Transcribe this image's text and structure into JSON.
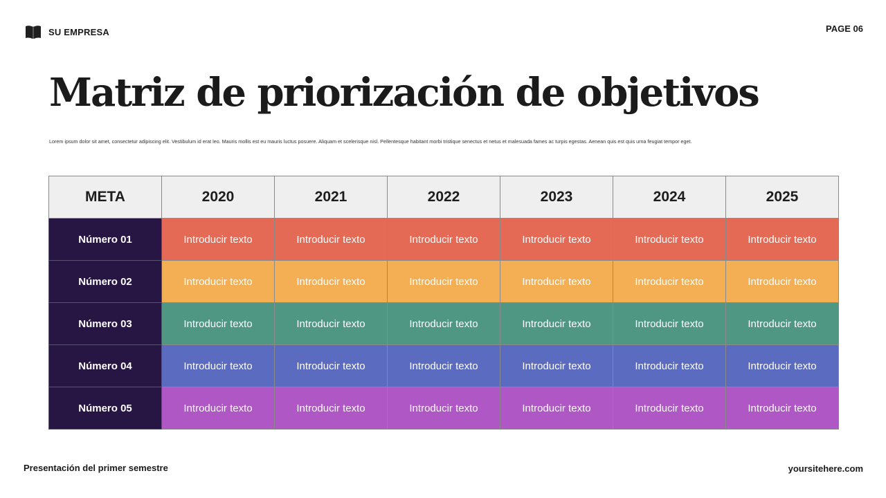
{
  "header": {
    "brand_icon": "open-book-icon",
    "brand": "SU EMPRESA",
    "page": "PAGE 06"
  },
  "title": "Matriz de priorización de objetivos",
  "description": "Lorem ipsum dolor sit amet, consectetur adipiscing elit. Vestibulum id erat leo. Mauris mollis est eu mauris luctus posuere. Aliquam et scelerisque nisl. Pellentesque habitant morbi tristique senectus et netus et malesuada fames ac turpis egestas. Aenean quis est quis urna feugiat tempor eget.",
  "table": {
    "headers": [
      "META",
      "2020",
      "2021",
      "2022",
      "2023",
      "2024",
      "2025"
    ],
    "rows": [
      {
        "label": "Número 01",
        "color": "#e46a55",
        "cells": [
          "Introducir texto",
          "Introducir texto",
          "Introducir texto",
          "Introducir texto",
          "Introducir texto",
          "Introducir texto"
        ]
      },
      {
        "label": "Número 02",
        "color": "#f4ae54",
        "cells": [
          "Introducir texto",
          "Introducir texto",
          "Introducir texto",
          "Introducir texto",
          "Introducir texto",
          "Introducir texto"
        ]
      },
      {
        "label": "Número 03",
        "color": "#4f9683",
        "cells": [
          "Introducir texto",
          "Introducir texto",
          "Introducir texto",
          "Introducir texto",
          "Introducir texto",
          "Introducir texto"
        ]
      },
      {
        "label": "Número 04",
        "color": "#5b6bbf",
        "cells": [
          "Introducir texto",
          "Introducir texto",
          "Introducir texto",
          "Introducir texto",
          "Introducir texto",
          "Introducir texto"
        ]
      },
      {
        "label": "Número  05",
        "color": "#ae57c5",
        "cells": [
          "Introducir texto",
          "Introducir texto",
          "Introducir texto",
          "Introducir texto",
          "Introducir texto",
          "Introducir texto"
        ]
      }
    ],
    "label_column_color": "#271544",
    "header_color": "#efefef"
  },
  "footer": {
    "left": "Presentación del primer semestre",
    "right": "yoursitehere.com"
  }
}
